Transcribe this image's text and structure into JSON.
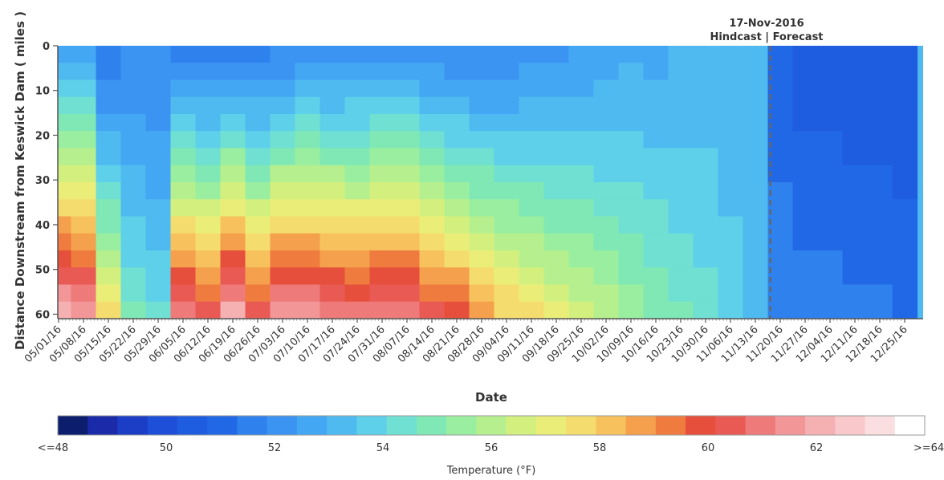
{
  "chart_data": {
    "type": "heatmap",
    "title": "",
    "xlabel": "Date",
    "ylabel": "Distance Downstream from Keswick Dam ( miles )",
    "x_tick_labels": [
      "05/01/16",
      "05/08/16",
      "05/15/16",
      "05/22/16",
      "05/29/16",
      "06/05/16",
      "06/12/16",
      "06/19/16",
      "06/26/16",
      "07/03/16",
      "07/10/16",
      "07/17/16",
      "07/24/16",
      "07/31/16",
      "08/07/16",
      "08/14/16",
      "08/21/16",
      "08/28/16",
      "09/04/16",
      "09/11/16",
      "09/18/16",
      "09/25/16",
      "10/02/16",
      "10/09/16",
      "10/16/16",
      "10/23/16",
      "10/30/16",
      "11/06/16",
      "11/13/16",
      "11/20/16",
      "11/27/16",
      "12/04/16",
      "12/11/16",
      "12/18/16",
      "12/25/16"
    ],
    "y_ticks": [
      0,
      10,
      20,
      30,
      40,
      50,
      60
    ],
    "ylim": [
      0,
      61
    ],
    "y_inverted": true,
    "grid": false,
    "annotation": {
      "date_label": "17-Nov-2016",
      "split_label": "Hindcast | Forecast",
      "at_week_index": 28.6
    },
    "colorbar": {
      "label": "Temperature (°F)",
      "min_label": "<=48",
      "max_label": ">=64",
      "tick_values": [
        50,
        52,
        54,
        56,
        58,
        60,
        62
      ],
      "range": [
        48,
        64
      ],
      "colors": [
        "#0c1d6e",
        "#1b2aa8",
        "#1c3ec7",
        "#1d4fd9",
        "#1f5de0",
        "#2168e6",
        "#2f82ee",
        "#3b94f2",
        "#44a7f4",
        "#4fbaf0",
        "#5fd0ea",
        "#6fe0d2",
        "#80e8b4",
        "#9aeea0",
        "#b6f08e",
        "#d3f07f",
        "#eaee79",
        "#f5dc6e",
        "#f7c25e",
        "#f4a04c",
        "#ef7c3e",
        "#e64f3b",
        "#ea5a55",
        "#ef7a7a",
        "#f29697",
        "#f5b0b2",
        "#f8c8ca",
        "#fbdfe0",
        "#ffffff"
      ]
    },
    "description_columns": {
      "week_start_dates": [
        "05/01/16",
        "05/08/16",
        "05/15/16",
        "05/22/16",
        "05/29/16",
        "06/05/16",
        "06/12/16",
        "06/19/16",
        "06/26/16",
        "07/03/16",
        "07/10/16",
        "07/17/16",
        "07/24/16",
        "07/31/16",
        "08/07/16",
        "08/14/16",
        "08/21/16",
        "08/28/16",
        "09/04/16",
        "09/11/16",
        "09/18/16",
        "09/25/16",
        "10/02/16",
        "10/09/16",
        "10/16/16",
        "10/23/16",
        "10/30/16",
        "11/06/16",
        "11/13/16",
        "11/20/16",
        "11/27/16",
        "12/04/16",
        "12/11/16",
        "12/18/16",
        "12/25/16"
      ],
      "temp_at_dam_F": [
        53.0,
        53.0,
        51.5,
        52.0,
        52.0,
        51.8,
        51.8,
        51.8,
        51.8,
        52.0,
        52.2,
        52.2,
        52.4,
        52.4,
        52.4,
        52.2,
        52.0,
        52.0,
        52.2,
        52.4,
        52.4,
        52.6,
        52.8,
        53.0,
        53.0,
        53.2,
        53.4,
        53.4,
        53.4,
        51.0,
        50.6,
        50.6,
        50.4,
        50.4,
        50.4
      ],
      "temp_at_60mi_F": [
        63.0,
        62.5,
        58.0,
        55.0,
        54.5,
        62.0,
        61.0,
        63.0,
        61.0,
        62.5,
        62.5,
        62.0,
        61.5,
        62.0,
        62.0,
        61.0,
        60.5,
        59.5,
        58.5,
        58.0,
        57.5,
        57.0,
        56.5,
        56.0,
        55.5,
        55.0,
        54.5,
        54.0,
        53.5,
        52.0,
        51.8,
        51.8,
        51.6,
        51.6,
        51.4
      ]
    }
  }
}
